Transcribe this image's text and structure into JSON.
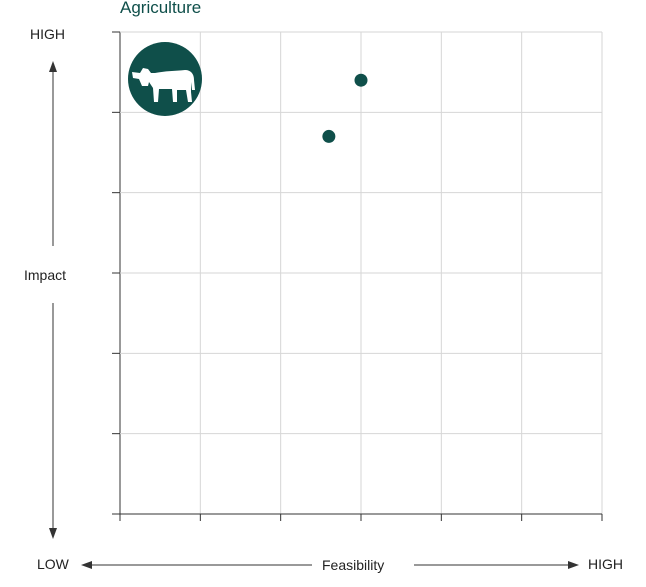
{
  "chart_data": {
    "type": "scatter",
    "title": "Agriculture",
    "xlabel": "Feasibility",
    "ylabel": "Impact",
    "x_low_label": "LOW",
    "x_high_label": "HIGH",
    "y_high_label": "HIGH",
    "xlim": [
      0,
      6
    ],
    "ylim": [
      0,
      6
    ],
    "grid": true,
    "points": [
      {
        "x": 3.0,
        "y": 5.4
      },
      {
        "x": 2.6,
        "y": 4.7
      }
    ],
    "icon": "cow-icon",
    "point_color": "#0f4f4a",
    "icon_color": "#0f4f4a"
  }
}
